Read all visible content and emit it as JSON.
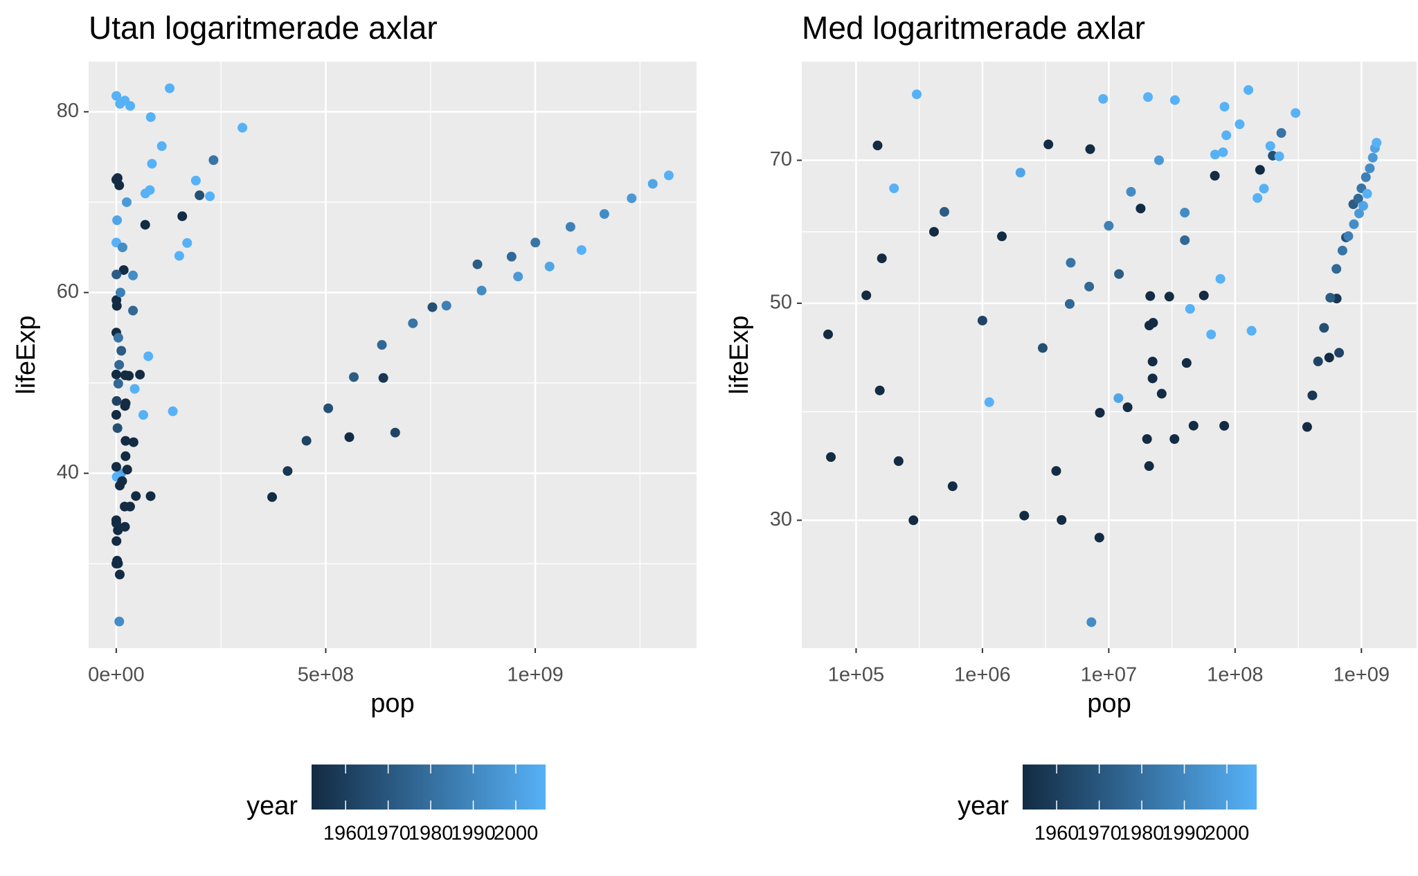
{
  "chart_data": [
    {
      "type": "scatter",
      "title": "Utan logaritmerade axlar",
      "x_label": "pop",
      "y_label": "lifeExp",
      "xlog": false,
      "ylog": false,
      "grid": true,
      "xlim": [
        -65900000,
        1384900000
      ],
      "ylim": [
        20.65,
        85.55
      ],
      "xticks": [
        {
          "value": 0,
          "label": "0e+00"
        },
        {
          "value": 500000000,
          "label": "5e+08"
        },
        {
          "value": 1000000000,
          "label": "1e+09"
        }
      ],
      "yticks": [
        40,
        60,
        80
      ],
      "x_minor_ticks": [
        250000000,
        750000000,
        1250000000
      ],
      "y_minor_ticks": [
        30,
        50,
        70
      ],
      "x": [
        556263527,
        637408000,
        665770000,
        754550000,
        862030000,
        943455000,
        1000281000,
        1084035000,
        1164970000,
        1230075000,
        1280400000,
        1318683096,
        372000000,
        409000000,
        454000000,
        506000000,
        567000000,
        634000000,
        708000000,
        788000000,
        872000000,
        959000000,
        1034172547,
        1110396331,
        157553000,
        198712000,
        232187835,
        301139947,
        127467972,
        82052000,
        223547000,
        56602560,
        190010647,
        7290203,
        2143249,
        8425333,
        147962,
        301931,
        60011,
        199579,
        63149,
        33119096,
        135031164,
        41346560,
        169270617,
        46886859,
        150448339,
        69145952,
        82400996,
        7124673,
        9031088,
        284320,
        30144317,
        108700891,
        20860941,
        76511887,
        22223309,
        80264543,
        12044785,
        39964159,
        43997828,
        11926563,
        1133066,
        120447,
        160000,
        153936,
        216964,
        413834,
        580653,
        4232095,
        3838168,
        4908554,
        69453570,
        26246839,
        85262356,
        22235677,
        20947571,
        21289402,
        22438691,
        20092996,
        14100005,
        64606759,
        8504667,
        17876956,
        33390141,
        20434176,
        3327728,
        1426095,
        5000000,
        10000000,
        3000000,
        15000000,
        7000000,
        2000000,
        25000000,
        1000000,
        500000,
        40000000
      ],
      "y": [
        44.0,
        50.55,
        44.5,
        58.38,
        63.12,
        63.97,
        65.53,
        67.27,
        68.69,
        70.43,
        72.03,
        72.96,
        37.37,
        40.25,
        43.6,
        47.19,
        50.65,
        54.21,
        56.6,
        58.55,
        60.22,
        61.77,
        62.88,
        64.7,
        68.44,
        70.76,
        74.65,
        78.24,
        82.6,
        37.47,
        70.65,
        50.92,
        72.39,
        23.6,
        30.33,
        28.8,
        72.49,
        81.76,
        46.47,
        65.53,
        34.81,
        36.32,
        46.86,
        43.44,
        65.48,
        37.48,
        64.06,
        67.5,
        79.41,
        71.86,
        80.88,
        30.0,
        50.79,
        76.2,
        34.08,
        52.95,
        41.89,
        71.34,
        53.56,
        61.89,
        49.34,
        39.99,
        39.61,
        50.94,
        55.57,
        40.72,
        34.48,
        59.16,
        32.5,
        30.02,
        33.69,
        49.92,
        70.96,
        40.41,
        74.25,
        43.59,
        47.45,
        50.85,
        47.75,
        36.32,
        39.14,
        46.46,
        38.64,
        62.49,
        80.65,
        81.24,
        72.67,
        58.53,
        55.0,
        60.0,
        45.0,
        65.0,
        52.0,
        68.0,
        70.0,
        48.0,
        62.0,
        58.0
      ],
      "year": [
        1952,
        1957,
        1962,
        1967,
        1972,
        1977,
        1982,
        1987,
        1992,
        1997,
        2002,
        2007,
        1952,
        1957,
        1962,
        1967,
        1972,
        1977,
        1982,
        1987,
        1992,
        1997,
        2002,
        2007,
        1952,
        1967,
        1982,
        2007,
        2007,
        1952,
        2007,
        1952,
        2007,
        1992,
        1952,
        1952,
        1952,
        2007,
        1952,
        2007,
        1952,
        1952,
        2007,
        1952,
        2007,
        1952,
        2007,
        1952,
        2007,
        1952,
        2007,
        1952,
        1952,
        2007,
        1952,
        2007,
        1952,
        2007,
        1972,
        1992,
        2007,
        2002,
        2007,
        1952,
        1952,
        1952,
        1952,
        1952,
        1952,
        1952,
        1952,
        1977,
        2007,
        1952,
        2007,
        1952,
        1952,
        1952,
        1952,
        1952,
        1952,
        2007,
        1952,
        1952,
        2007,
        2007,
        1952,
        1952,
        1982,
        1987,
        1967,
        1992,
        1977,
        2002,
        1997,
        1962,
        1972,
        1977
      ],
      "colorbar": {
        "title": "year",
        "limits": [
          1952,
          2007
        ],
        "ticks": [
          1960,
          1970,
          1980,
          1990,
          2000
        ],
        "colors": [
          "#132B43",
          "#56B1F7"
        ]
      }
    },
    {
      "type": "scatter",
      "title": "Med logaritmerade axlar",
      "x_label": "pop",
      "y_label": "lifeExp",
      "xlog": true,
      "ylog": true,
      "grid": true,
      "xlim": [
        37154,
        2735000000
      ],
      "ylim": [
        22.2,
        88.3
      ],
      "xticks": [
        {
          "value": 100000,
          "label": "1e+05"
        },
        {
          "value": 1000000,
          "label": "1e+06"
        },
        {
          "value": 10000000,
          "label": "1e+07"
        },
        {
          "value": 100000000,
          "label": "1e+08"
        },
        {
          "value": 1000000000,
          "label": "1e+09"
        }
      ],
      "yticks": [
        30,
        50,
        70
      ],
      "x_minor_ticks": [
        316228,
        3162278,
        31622777,
        316227766
      ],
      "y_minor_ticks": [
        38.73,
        59.16
      ],
      "x": [
        556263527,
        637408000,
        665770000,
        754550000,
        862030000,
        943455000,
        1000281000,
        1084035000,
        1164970000,
        1230075000,
        1280400000,
        1318683096,
        372000000,
        409000000,
        454000000,
        506000000,
        567000000,
        634000000,
        708000000,
        788000000,
        872000000,
        959000000,
        1034172547,
        1110396331,
        157553000,
        198712000,
        232187835,
        301139947,
        127467972,
        82052000,
        223547000,
        56602560,
        190010647,
        7290203,
        2143249,
        8425333,
        147962,
        301931,
        60011,
        199579,
        63149,
        33119096,
        135031164,
        41346560,
        169270617,
        46886859,
        150448339,
        69145952,
        82400996,
        7124673,
        9031088,
        284320,
        30144317,
        108700891,
        20860941,
        76511887,
        22223309,
        80264543,
        12044785,
        39964159,
        43997828,
        11926563,
        1133066,
        120447,
        160000,
        153936,
        216964,
        413834,
        580653,
        4232095,
        3838168,
        4908554,
        69453570,
        26246839,
        85262356,
        22235677,
        20947571,
        21289402,
        22438691,
        20092996,
        14100005,
        64606759,
        8504667,
        17876956,
        33390141,
        20434176,
        3327728,
        1426095,
        5000000,
        10000000,
        3000000,
        15000000,
        7000000,
        2000000,
        25000000,
        1000000,
        500000,
        40000000
      ],
      "y": [
        44.0,
        50.55,
        44.5,
        58.38,
        63.12,
        63.97,
        65.53,
        67.27,
        68.69,
        70.43,
        72.03,
        72.96,
        37.37,
        40.25,
        43.6,
        47.19,
        50.65,
        54.21,
        56.6,
        58.55,
        60.22,
        61.77,
        62.88,
        64.7,
        68.44,
        70.76,
        74.65,
        78.24,
        82.6,
        37.47,
        70.65,
        50.92,
        72.39,
        23.6,
        30.33,
        28.8,
        72.49,
        81.76,
        46.47,
        65.53,
        34.81,
        36.32,
        46.86,
        43.44,
        65.48,
        37.48,
        64.06,
        67.5,
        79.41,
        71.86,
        80.88,
        30.0,
        50.79,
        76.2,
        34.08,
        52.95,
        41.89,
        71.34,
        53.56,
        61.89,
        49.34,
        39.99,
        39.61,
        50.94,
        55.57,
        40.72,
        34.48,
        59.16,
        32.5,
        30.02,
        33.69,
        49.92,
        70.96,
        40.41,
        74.25,
        43.59,
        47.45,
        50.85,
        47.75,
        36.32,
        39.14,
        46.46,
        38.64,
        62.49,
        80.65,
        81.24,
        72.67,
        58.53,
        55.0,
        60.0,
        45.0,
        65.0,
        52.0,
        68.0,
        70.0,
        48.0,
        62.0,
        58.0
      ],
      "year": [
        1952,
        1957,
        1962,
        1967,
        1972,
        1977,
        1982,
        1987,
        1992,
        1997,
        2002,
        2007,
        1952,
        1957,
        1962,
        1967,
        1972,
        1977,
        1982,
        1987,
        1992,
        1997,
        2002,
        2007,
        1952,
        1967,
        1982,
        2007,
        2007,
        1952,
        2007,
        1952,
        2007,
        1992,
        1952,
        1952,
        1952,
        2007,
        1952,
        2007,
        1952,
        1952,
        2007,
        1952,
        2007,
        1952,
        2007,
        1952,
        2007,
        1952,
        2007,
        1952,
        1952,
        2007,
        1952,
        2007,
        1952,
        2007,
        1972,
        1992,
        2007,
        2002,
        2007,
        1952,
        1952,
        1952,
        1952,
        1952,
        1952,
        1952,
        1952,
        1977,
        2007,
        1952,
        2007,
        1952,
        1952,
        1952,
        1952,
        1952,
        1952,
        2007,
        1952,
        1952,
        2007,
        2007,
        1952,
        1952,
        1982,
        1987,
        1967,
        1992,
        1977,
        2002,
        1997,
        1962,
        1972,
        1977
      ],
      "colorbar": {
        "title": "year",
        "limits": [
          1952,
          2007
        ],
        "ticks": [
          1960,
          1970,
          1980,
          1990,
          2000
        ],
        "colors": [
          "#132B43",
          "#56B1F7"
        ]
      }
    }
  ]
}
